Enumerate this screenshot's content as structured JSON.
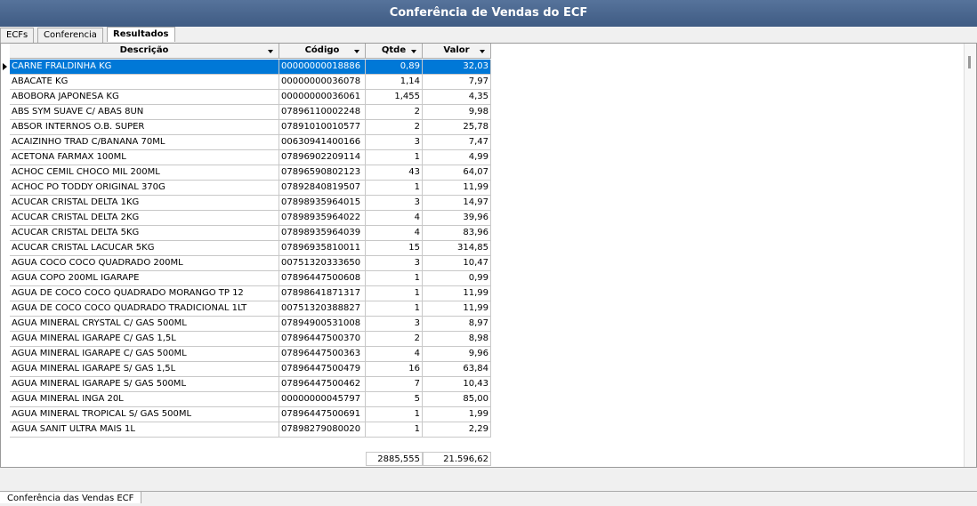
{
  "window": {
    "title": "Conferência de Vendas do ECF"
  },
  "tabs": [
    "ECFs",
    "Conferencia",
    "Resultados"
  ],
  "grid": {
    "columns": [
      "Descrição",
      "Código",
      "Qtde",
      "Valor"
    ],
    "rows": [
      [
        "CARNE FRALDINHA KG",
        "00000000018886",
        "0,89",
        "32,03"
      ],
      [
        "ABACATE KG",
        "00000000036078",
        "1,14",
        "7,97"
      ],
      [
        "ABOBORA JAPONESA KG",
        "00000000036061",
        "1,455",
        "4,35"
      ],
      [
        "ABS SYM SUAVE C/ ABAS 8UN",
        "07896110002248",
        "2",
        "9,98"
      ],
      [
        "ABSOR INTERNOS O.B. SUPER",
        "07891010010577",
        "2",
        "25,78"
      ],
      [
        "ACAIZINHO TRAD C/BANANA 70ML",
        "00630941400166",
        "3",
        "7,47"
      ],
      [
        "ACETONA FARMAX 100ML",
        "07896902209114",
        "1",
        "4,99"
      ],
      [
        "ACHOC CEMIL CHOCO MIL 200ML",
        "07896590802123",
        "43",
        "64,07"
      ],
      [
        "ACHOC PO TODDY ORIGINAL 370G",
        "07892840819507",
        "1",
        "11,99"
      ],
      [
        "ACUCAR CRISTAL DELTA 1KG",
        "07898935964015",
        "3",
        "14,97"
      ],
      [
        "ACUCAR CRISTAL DELTA 2KG",
        "07898935964022",
        "4",
        "39,96"
      ],
      [
        "ACUCAR CRISTAL DELTA 5KG",
        "07898935964039",
        "4",
        "83,96"
      ],
      [
        "ACUCAR CRISTAL LACUCAR 5KG",
        "07896935810011",
        "15",
        "314,85"
      ],
      [
        "AGUA COCO COCO QUADRADO 200ML",
        "00751320333650",
        "3",
        "10,47"
      ],
      [
        "AGUA COPO 200ML IGARAPE",
        "07896447500608",
        "1",
        "0,99"
      ],
      [
        "AGUA DE COCO COCO QUADRADO MORANGO TP 12",
        "07898641871317",
        "1",
        "11,99"
      ],
      [
        "AGUA DE COCO COCO QUADRADO TRADICIONAL 1LT",
        "00751320388827",
        "1",
        "11,99"
      ],
      [
        "AGUA MINERAL CRYSTAL C/ GAS 500ML",
        "07894900531008",
        "3",
        "8,97"
      ],
      [
        "AGUA MINERAL IGARAPE C/ GAS 1,5L",
        "07896447500370",
        "2",
        "8,98"
      ],
      [
        "AGUA MINERAL IGARAPE C/ GAS 500ML",
        "07896447500363",
        "4",
        "9,96"
      ],
      [
        "AGUA MINERAL IGARAPE S/ GAS 1,5L",
        "07896447500479",
        "16",
        "63,84"
      ],
      [
        "AGUA MINERAL IGARAPE S/ GAS 500ML",
        "07896447500462",
        "7",
        "10,43"
      ],
      [
        "AGUA MINERAL INGA 20L",
        "00000000045797",
        "5",
        "85,00"
      ],
      [
        "AGUA MINERAL TROPICAL S/ GAS 500ML",
        "07896447500691",
        "1",
        "1,99"
      ],
      [
        "AGUA SANIT ULTRA MAIS 1L",
        "07898279080020",
        "1",
        "2,29"
      ]
    ],
    "totals": {
      "qtde": "2885,555",
      "valor": "21.596,62"
    }
  },
  "bottom_tab": "Conferência das Vendas ECF"
}
